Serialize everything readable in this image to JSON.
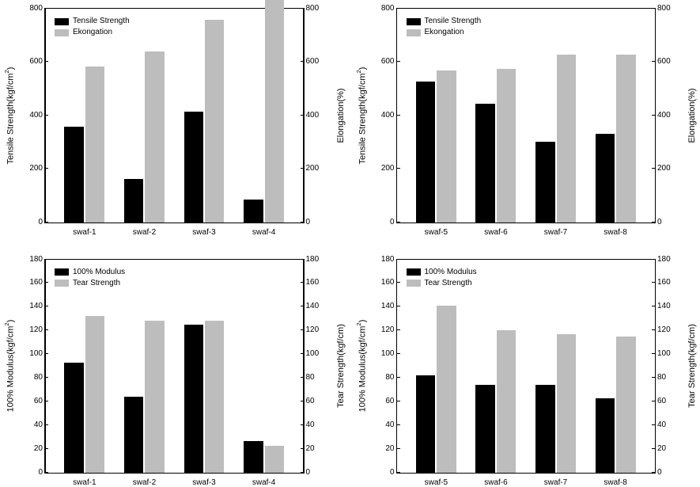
{
  "panels": [
    {
      "id": "p0",
      "ylab_left": "Tensile Strength(kgf/cm²)",
      "ylab_right": "Elongation(%)",
      "legend": [
        "Tensile Strength",
        "Ekongation"
      ],
      "ymax": 800,
      "ytick_step": 200,
      "categories": [
        "swaf-1",
        "swaf-2",
        "swaf-3",
        "swaf-4"
      ],
      "series_black": [
        358,
        162,
        415,
        85
      ],
      "series_grey": [
        583,
        640,
        758,
        832
      ],
      "black_color": "#000000",
      "grey_color": "#bdbdbd"
    },
    {
      "id": "p1",
      "ylab_left": "Tensile Strength(kgf/cm²)",
      "ylab_right": "Elongation(%)",
      "legend": [
        "Tensile Strength",
        "Ekongation"
      ],
      "ymax": 800,
      "ytick_step": 200,
      "categories": [
        "swaf-5",
        "swaf-6",
        "swaf-7",
        "swaf-8"
      ],
      "series_black": [
        528,
        445,
        302,
        332
      ],
      "series_grey": [
        568,
        575,
        628,
        628
      ],
      "black_color": "#000000",
      "grey_color": "#bdbdbd"
    },
    {
      "id": "p2",
      "ylab_left": "100% Modulus(kgf/cm²)",
      "ylab_right": "Tear Strength(kgf/cm)",
      "legend": [
        "100% Modulus",
        "Tear Strength"
      ],
      "ymax": 180,
      "ytick_step": 20,
      "categories": [
        "swaf-1",
        "swaf-2",
        "swaf-3",
        "swaf-4"
      ],
      "series_black": [
        93,
        64,
        125,
        27
      ],
      "series_grey": [
        132,
        128,
        128,
        23
      ],
      "black_color": "#000000",
      "grey_color": "#bdbdbd"
    },
    {
      "id": "p3",
      "ylab_left": "100% Modulus(kgf/cm²)",
      "ylab_right": "Tear Strength(kgf/cm)",
      "legend": [
        "100% Modulus",
        "Tear Strength"
      ],
      "ymax": 180,
      "ytick_step": 20,
      "categories": [
        "swaf-5",
        "swaf-6",
        "swaf-7",
        "swaf-8"
      ],
      "series_black": [
        82,
        74,
        74,
        63
      ],
      "series_grey": [
        141,
        120,
        117,
        115
      ],
      "black_color": "#000000",
      "grey_color": "#bdbdbd"
    }
  ]
}
